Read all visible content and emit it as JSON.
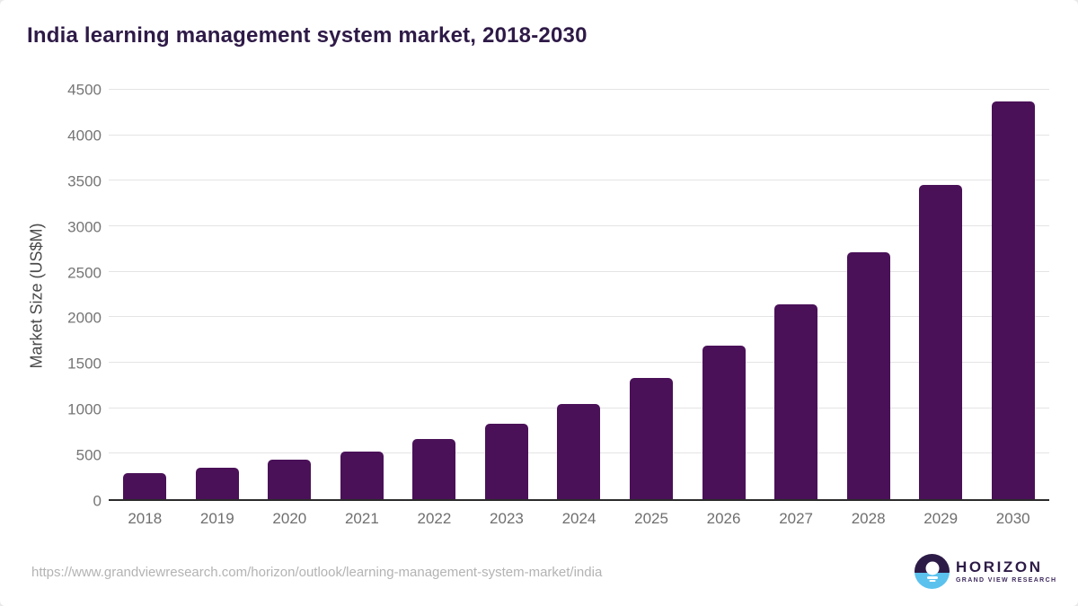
{
  "header": {
    "title": "India learning management system market, 2018-2030"
  },
  "chart_data": {
    "type": "bar",
    "title": "India learning management system market, 2018-2030",
    "categories": [
      "2018",
      "2019",
      "2020",
      "2021",
      "2022",
      "2023",
      "2024",
      "2025",
      "2026",
      "2027",
      "2028",
      "2029",
      "2030"
    ],
    "values": [
      285,
      345,
      430,
      525,
      665,
      830,
      1050,
      1330,
      1690,
      2140,
      2715,
      3450,
      4375
    ],
    "xlabel": "",
    "ylabel": "Market Size (US$M)",
    "ylim": [
      0,
      4500
    ],
    "yticks": [
      0,
      500,
      1000,
      1500,
      2000,
      2500,
      3000,
      3500,
      4000,
      4500
    ],
    "grid": true,
    "legend": false,
    "bar_color": "#4a1158"
  },
  "footer": {
    "source_url": "https://www.grandviewresearch.com/horizon/outlook/learning-management-system-market/india"
  },
  "logo": {
    "name": "HORIZON",
    "subtitle": "GRAND VIEW RESEARCH"
  },
  "colors": {
    "bar": "#4a1158",
    "title": "#2e1a47",
    "tick": "#757575",
    "axis_label": "#4a4a4a",
    "grid": "#e4e4e4",
    "axis_line": "#2b2b2b",
    "url": "#b3b3b3",
    "logo_purple": "#2d1b47",
    "logo_blue": "#5bc2ee"
  }
}
